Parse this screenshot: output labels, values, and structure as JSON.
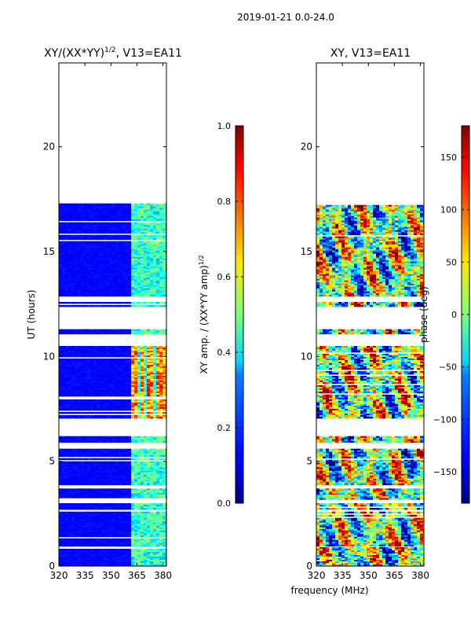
{
  "figure": {
    "suptitle": "2019-01-21 0.0-24.0",
    "shared_xlabel": "frequency (MHz)"
  },
  "chart_data": [
    {
      "type": "heatmap",
      "title_main": "XY/(XX*YY)",
      "title_sup": "1/2",
      "title_tail": ", V13=EA11",
      "xlabel": "",
      "ylabel": "UT (hours)",
      "xlim": [
        320,
        382
      ],
      "ylim": [
        0,
        24
      ],
      "xticks": [
        "320",
        "335",
        "350",
        "365",
        "380"
      ],
      "xtick_values": [
        320,
        335,
        350,
        365,
        380
      ],
      "yticks": [
        "0",
        "5",
        "10",
        "15",
        "20"
      ],
      "ytick_values": [
        0,
        5,
        10,
        15,
        20
      ],
      "colormap": "jet",
      "colorbar": {
        "label_main": "XY amp. / (XX*YY amp)",
        "label_sup": "1/2",
        "range": [
          0.0,
          1.0
        ],
        "ticks": [
          "0.0",
          "0.2",
          "0.4",
          "0.6",
          "0.8",
          "1.0"
        ],
        "tick_values": [
          0.0,
          0.2,
          0.4,
          0.6,
          0.8,
          1.0
        ]
      },
      "data_blocks_ut": [
        [
          0.0,
          0.9
        ],
        [
          1.0,
          2.6
        ],
        [
          2.7,
          3.0
        ],
        [
          3.2,
          3.7
        ],
        [
          3.9,
          5.6
        ],
        [
          5.9,
          6.2
        ],
        [
          7.1,
          10.5
        ],
        [
          11.1,
          11.3
        ],
        [
          12.4,
          12.6
        ],
        [
          12.9,
          17.3
        ]
      ],
      "bright_band_mhz": [
        361,
        381
      ],
      "peak_region_ut": [
        7.1,
        10.5
      ],
      "peak_columns_mhz": [
        363,
        367,
        372,
        376,
        379
      ]
    },
    {
      "type": "heatmap",
      "title_main": "XY, V13=EA11",
      "xlabel": "",
      "ylabel": "",
      "xlim": [
        320,
        382
      ],
      "ylim": [
        0,
        24
      ],
      "xticks": [
        "320",
        "335",
        "350",
        "365",
        "380"
      ],
      "xtick_values": [
        320,
        335,
        350,
        365,
        380
      ],
      "yticks": [
        "0",
        "5",
        "10",
        "15",
        "20"
      ],
      "ytick_values": [
        0,
        5,
        10,
        15,
        20
      ],
      "colormap": "jet",
      "colorbar": {
        "label_main": "phase (deg)",
        "range": [
          -180,
          180
        ],
        "ticks": [
          "−150",
          "−100",
          "−50",
          "0",
          "50",
          "100",
          "150"
        ],
        "tick_values": [
          -150,
          -100,
          -50,
          0,
          50,
          100,
          150
        ]
      },
      "data_blocks_ut": [
        [
          0.0,
          0.9
        ],
        [
          1.0,
          2.6
        ],
        [
          2.7,
          3.0
        ],
        [
          3.2,
          3.7
        ],
        [
          3.9,
          5.6
        ],
        [
          5.9,
          6.2
        ],
        [
          7.1,
          10.5
        ],
        [
          11.1,
          11.3
        ],
        [
          12.4,
          12.6
        ],
        [
          12.9,
          17.3
        ]
      ]
    }
  ]
}
